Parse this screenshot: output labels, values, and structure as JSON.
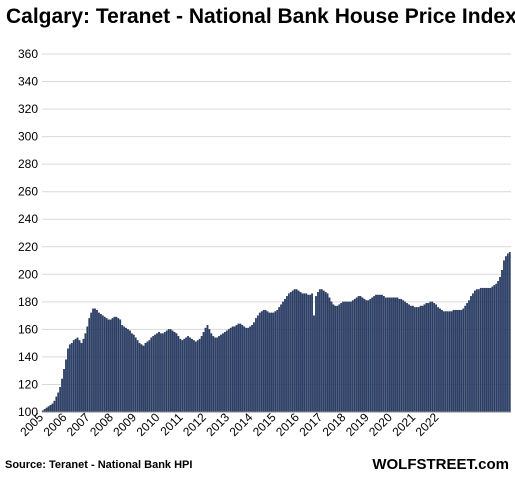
{
  "chart_data": {
    "type": "bar",
    "title": "Calgary: Teranet - National Bank House Price Index",
    "xlabel": "",
    "ylabel": "",
    "ylim": [
      100,
      360
    ],
    "yticks": [
      100,
      120,
      140,
      160,
      180,
      200,
      220,
      240,
      260,
      280,
      300,
      320,
      340,
      360
    ],
    "xticks": [
      "2005",
      "2006",
      "2007",
      "2008",
      "2009",
      "2010",
      "2011",
      "2012",
      "2013",
      "2014",
      "2015",
      "2016",
      "2017",
      "2018",
      "2019",
      "2020",
      "2021",
      "2022"
    ],
    "x_start": "2005-01",
    "x_frequency": "monthly",
    "grid": true,
    "bar_color": "#2a4170",
    "values": [
      101,
      102,
      103,
      104,
      105,
      106,
      108,
      111,
      114,
      118,
      124,
      131,
      138,
      146,
      149,
      150,
      152,
      153,
      154,
      152,
      150,
      153,
      157,
      162,
      168,
      172,
      175,
      175,
      174,
      172,
      171,
      170,
      169,
      168,
      167,
      167,
      168,
      169,
      169,
      168,
      167,
      163,
      162,
      161,
      160,
      159,
      157,
      156,
      154,
      152,
      150,
      149,
      148,
      150,
      151,
      152,
      154,
      155,
      156,
      157,
      158,
      157,
      157,
      158,
      159,
      160,
      160,
      159,
      158,
      157,
      155,
      153,
      152,
      153,
      154,
      155,
      154,
      153,
      152,
      151,
      152,
      153,
      155,
      158,
      161,
      163,
      160,
      157,
      155,
      154,
      154,
      155,
      156,
      157,
      158,
      159,
      160,
      161,
      162,
      162,
      163,
      164,
      164,
      163,
      162,
      161,
      161,
      162,
      163,
      165,
      168,
      170,
      172,
      173,
      174,
      174,
      173,
      172,
      172,
      172,
      173,
      174,
      176,
      178,
      180,
      182,
      184,
      186,
      187,
      188,
      189,
      189,
      188,
      187,
      186,
      186,
      186,
      185,
      185,
      186,
      170,
      184,
      187,
      189,
      189,
      188,
      187,
      186,
      183,
      180,
      178,
      177,
      177,
      178,
      179,
      180,
      180,
      180,
      180,
      180,
      181,
      182,
      183,
      184,
      184,
      183,
      182,
      181,
      181,
      182,
      183,
      184,
      185,
      185,
      185,
      185,
      184,
      183,
      183,
      183,
      183,
      183,
      183,
      183,
      182,
      182,
      181,
      180,
      179,
      178,
      177,
      177,
      176,
      176,
      176,
      177,
      177,
      178,
      179,
      179,
      180,
      180,
      179,
      178,
      176,
      175,
      174,
      173,
      173,
      173,
      173,
      173,
      174,
      174,
      174,
      174,
      174,
      175,
      177,
      179,
      181,
      184,
      186,
      188,
      189,
      189,
      190,
      190,
      190,
      190,
      190,
      190,
      191,
      192,
      193,
      195,
      198,
      203,
      210,
      213,
      215,
      216
    ]
  },
  "source_label": "Source: Teranet - National Bank HPI",
  "watermark": "WOLFSTREET.com"
}
